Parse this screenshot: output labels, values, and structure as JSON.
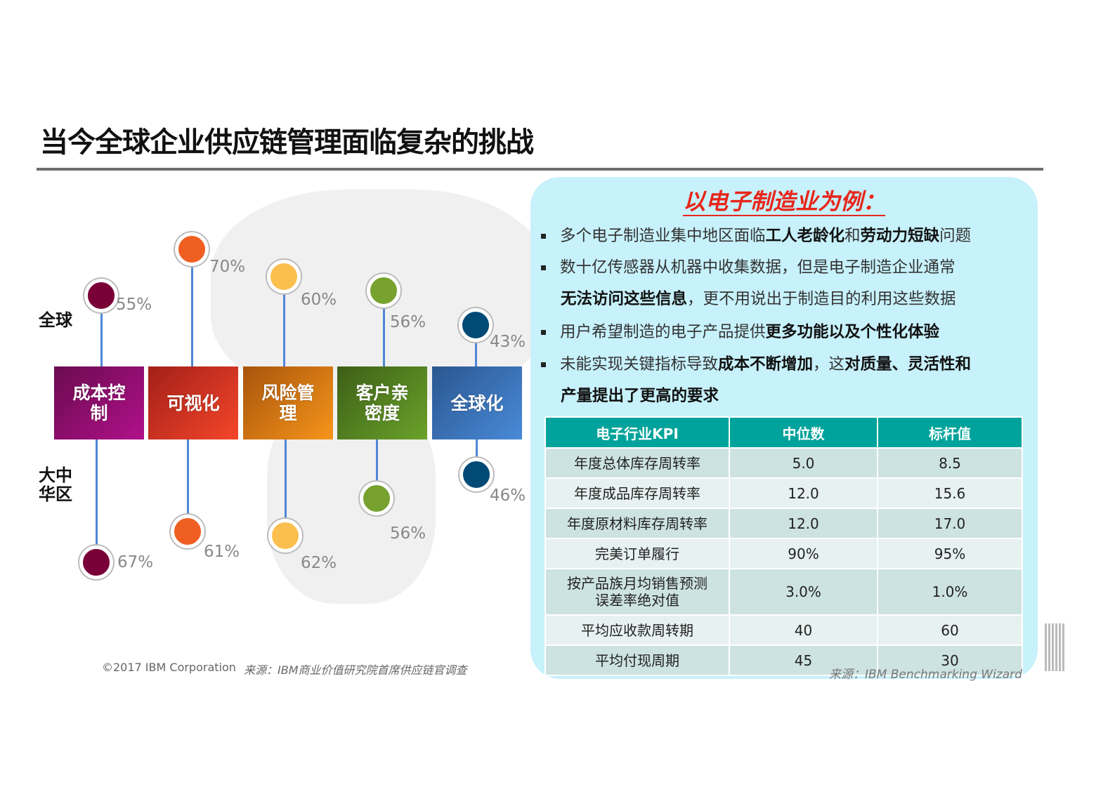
{
  "title": "当今全球企业供应链管理面临复杂的挑战",
  "left": {
    "row_labels": {
      "global": "全球",
      "greater_china": "大中华区"
    },
    "categories": [
      {
        "label": "成本控制",
        "global": "55%",
        "china": "67%",
        "color": "#7a0038",
        "box_from": "#6a0b4f",
        "box_to": "#b0108a"
      },
      {
        "label": "可视化",
        "global": "70%",
        "china": "61%",
        "color": "#f05f22",
        "box_from": "#a31f18",
        "box_to": "#f4462a"
      },
      {
        "label": "风险管理",
        "global": "60%",
        "china": "62%",
        "color": "#fbbf4f",
        "box_from": "#a8540c",
        "box_to": "#f6951a"
      },
      {
        "label": "客户亲密度",
        "global": "56%",
        "china": "56%",
        "color": "#77a22f",
        "box_from": "#3d5f17",
        "box_to": "#6aa22a"
      },
      {
        "label": "全球化",
        "global": "43%",
        "china": "46%",
        "color": "#004a75",
        "box_from": "#2a5790",
        "box_to": "#4a8ad8"
      }
    ],
    "footer_copyright": "©2017 IBM Corporation",
    "footer_source": "来源：IBM商业价值研究院首席供应链官调查"
  },
  "right": {
    "subtitle": "以电子制造业为例：",
    "bullets": [
      [
        {
          "t": "多个电子制造业集中地区面临"
        },
        {
          "t": "工人老龄化",
          "b": 1
        },
        {
          "t": "和"
        },
        {
          "t": "劳动力短缺",
          "b": 1
        },
        {
          "t": "问题"
        }
      ],
      [
        {
          "t": "数十亿传感器从机器中收集数据，但是电子制造企业通常"
        }
      ],
      [
        {
          "t": "无法访问这些信息",
          "b": 1
        },
        {
          "t": "，更不用说出于制造目的利用这些数据"
        }
      ],
      [
        {
          "t": "用户希望制造的电子产品提供"
        },
        {
          "t": "更多功能以及个性化体验",
          "b": 1
        }
      ],
      [
        {
          "t": "未能实现关键指标导致"
        },
        {
          "t": "成本不断增加",
          "b": 1
        },
        {
          "t": "，这"
        },
        {
          "t": "对质量、灵活性和",
          "b": 1
        }
      ],
      [
        {
          "t": "产量提出了更高的要求",
          "b": 1
        }
      ]
    ],
    "table": {
      "headers": [
        "电子行业KPI",
        "中位数",
        "标杆值"
      ],
      "rows": [
        [
          "年度总体库存周转率",
          "5.0",
          "8.5"
        ],
        [
          "年度成品库存周转率",
          "12.0",
          "15.6"
        ],
        [
          "年度原材料库存周转率",
          "12.0",
          "17.0"
        ],
        [
          "完美订单履行",
          "90%",
          "95%"
        ],
        [
          "按产品族月均销售预测\n误差率绝对值",
          "3.0%",
          "1.0%"
        ],
        [
          "平均应收款周转期",
          "40",
          "60"
        ],
        [
          "平均付现周期",
          "45",
          "30"
        ]
      ]
    },
    "source": "来源：IBM Benchmarking Wizard"
  }
}
